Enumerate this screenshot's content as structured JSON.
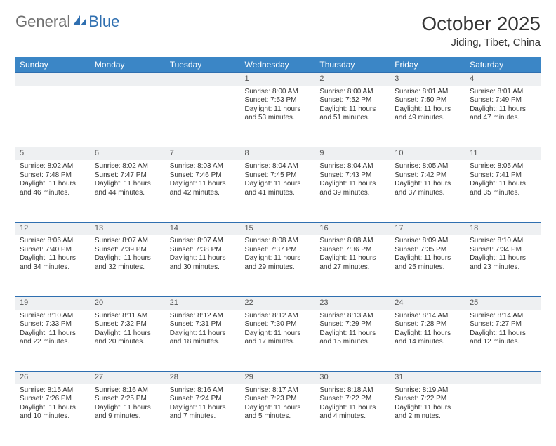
{
  "logo": {
    "general": "General",
    "blue": "Blue"
  },
  "title": "October 2025",
  "subtitle": "Jiding, Tibet, China",
  "colors": {
    "header_bg": "#3b86c6",
    "header_text": "#ffffff",
    "daynum_bg": "#eef0f2",
    "daynum_border": "#2f6fb0",
    "body_text": "#333333",
    "logo_general": "#6f6f6f",
    "logo_blue": "#2f6fb0"
  },
  "weekdays": [
    "Sunday",
    "Monday",
    "Tuesday",
    "Wednesday",
    "Thursday",
    "Friday",
    "Saturday"
  ],
  "weeks": [
    {
      "nums": [
        "",
        "",
        "",
        "1",
        "2",
        "3",
        "4"
      ],
      "cells": [
        null,
        null,
        null,
        {
          "sunrise": "Sunrise: 8:00 AM",
          "sunset": "Sunset: 7:53 PM",
          "day1": "Daylight: 11 hours",
          "day2": "and 53 minutes."
        },
        {
          "sunrise": "Sunrise: 8:00 AM",
          "sunset": "Sunset: 7:52 PM",
          "day1": "Daylight: 11 hours",
          "day2": "and 51 minutes."
        },
        {
          "sunrise": "Sunrise: 8:01 AM",
          "sunset": "Sunset: 7:50 PM",
          "day1": "Daylight: 11 hours",
          "day2": "and 49 minutes."
        },
        {
          "sunrise": "Sunrise: 8:01 AM",
          "sunset": "Sunset: 7:49 PM",
          "day1": "Daylight: 11 hours",
          "day2": "and 47 minutes."
        }
      ]
    },
    {
      "nums": [
        "5",
        "6",
        "7",
        "8",
        "9",
        "10",
        "11"
      ],
      "cells": [
        {
          "sunrise": "Sunrise: 8:02 AM",
          "sunset": "Sunset: 7:48 PM",
          "day1": "Daylight: 11 hours",
          "day2": "and 46 minutes."
        },
        {
          "sunrise": "Sunrise: 8:02 AM",
          "sunset": "Sunset: 7:47 PM",
          "day1": "Daylight: 11 hours",
          "day2": "and 44 minutes."
        },
        {
          "sunrise": "Sunrise: 8:03 AM",
          "sunset": "Sunset: 7:46 PM",
          "day1": "Daylight: 11 hours",
          "day2": "and 42 minutes."
        },
        {
          "sunrise": "Sunrise: 8:04 AM",
          "sunset": "Sunset: 7:45 PM",
          "day1": "Daylight: 11 hours",
          "day2": "and 41 minutes."
        },
        {
          "sunrise": "Sunrise: 8:04 AM",
          "sunset": "Sunset: 7:43 PM",
          "day1": "Daylight: 11 hours",
          "day2": "and 39 minutes."
        },
        {
          "sunrise": "Sunrise: 8:05 AM",
          "sunset": "Sunset: 7:42 PM",
          "day1": "Daylight: 11 hours",
          "day2": "and 37 minutes."
        },
        {
          "sunrise": "Sunrise: 8:05 AM",
          "sunset": "Sunset: 7:41 PM",
          "day1": "Daylight: 11 hours",
          "day2": "and 35 minutes."
        }
      ]
    },
    {
      "nums": [
        "12",
        "13",
        "14",
        "15",
        "16",
        "17",
        "18"
      ],
      "cells": [
        {
          "sunrise": "Sunrise: 8:06 AM",
          "sunset": "Sunset: 7:40 PM",
          "day1": "Daylight: 11 hours",
          "day2": "and 34 minutes."
        },
        {
          "sunrise": "Sunrise: 8:07 AM",
          "sunset": "Sunset: 7:39 PM",
          "day1": "Daylight: 11 hours",
          "day2": "and 32 minutes."
        },
        {
          "sunrise": "Sunrise: 8:07 AM",
          "sunset": "Sunset: 7:38 PM",
          "day1": "Daylight: 11 hours",
          "day2": "and 30 minutes."
        },
        {
          "sunrise": "Sunrise: 8:08 AM",
          "sunset": "Sunset: 7:37 PM",
          "day1": "Daylight: 11 hours",
          "day2": "and 29 minutes."
        },
        {
          "sunrise": "Sunrise: 8:08 AM",
          "sunset": "Sunset: 7:36 PM",
          "day1": "Daylight: 11 hours",
          "day2": "and 27 minutes."
        },
        {
          "sunrise": "Sunrise: 8:09 AM",
          "sunset": "Sunset: 7:35 PM",
          "day1": "Daylight: 11 hours",
          "day2": "and 25 minutes."
        },
        {
          "sunrise": "Sunrise: 8:10 AM",
          "sunset": "Sunset: 7:34 PM",
          "day1": "Daylight: 11 hours",
          "day2": "and 23 minutes."
        }
      ]
    },
    {
      "nums": [
        "19",
        "20",
        "21",
        "22",
        "23",
        "24",
        "25"
      ],
      "cells": [
        {
          "sunrise": "Sunrise: 8:10 AM",
          "sunset": "Sunset: 7:33 PM",
          "day1": "Daylight: 11 hours",
          "day2": "and 22 minutes."
        },
        {
          "sunrise": "Sunrise: 8:11 AM",
          "sunset": "Sunset: 7:32 PM",
          "day1": "Daylight: 11 hours",
          "day2": "and 20 minutes."
        },
        {
          "sunrise": "Sunrise: 8:12 AM",
          "sunset": "Sunset: 7:31 PM",
          "day1": "Daylight: 11 hours",
          "day2": "and 18 minutes."
        },
        {
          "sunrise": "Sunrise: 8:12 AM",
          "sunset": "Sunset: 7:30 PM",
          "day1": "Daylight: 11 hours",
          "day2": "and 17 minutes."
        },
        {
          "sunrise": "Sunrise: 8:13 AM",
          "sunset": "Sunset: 7:29 PM",
          "day1": "Daylight: 11 hours",
          "day2": "and 15 minutes."
        },
        {
          "sunrise": "Sunrise: 8:14 AM",
          "sunset": "Sunset: 7:28 PM",
          "day1": "Daylight: 11 hours",
          "day2": "and 14 minutes."
        },
        {
          "sunrise": "Sunrise: 8:14 AM",
          "sunset": "Sunset: 7:27 PM",
          "day1": "Daylight: 11 hours",
          "day2": "and 12 minutes."
        }
      ]
    },
    {
      "nums": [
        "26",
        "27",
        "28",
        "29",
        "30",
        "31",
        ""
      ],
      "cells": [
        {
          "sunrise": "Sunrise: 8:15 AM",
          "sunset": "Sunset: 7:26 PM",
          "day1": "Daylight: 11 hours",
          "day2": "and 10 minutes."
        },
        {
          "sunrise": "Sunrise: 8:16 AM",
          "sunset": "Sunset: 7:25 PM",
          "day1": "Daylight: 11 hours",
          "day2": "and 9 minutes."
        },
        {
          "sunrise": "Sunrise: 8:16 AM",
          "sunset": "Sunset: 7:24 PM",
          "day1": "Daylight: 11 hours",
          "day2": "and 7 minutes."
        },
        {
          "sunrise": "Sunrise: 8:17 AM",
          "sunset": "Sunset: 7:23 PM",
          "day1": "Daylight: 11 hours",
          "day2": "and 5 minutes."
        },
        {
          "sunrise": "Sunrise: 8:18 AM",
          "sunset": "Sunset: 7:22 PM",
          "day1": "Daylight: 11 hours",
          "day2": "and 4 minutes."
        },
        {
          "sunrise": "Sunrise: 8:19 AM",
          "sunset": "Sunset: 7:22 PM",
          "day1": "Daylight: 11 hours",
          "day2": "and 2 minutes."
        },
        null
      ]
    }
  ]
}
